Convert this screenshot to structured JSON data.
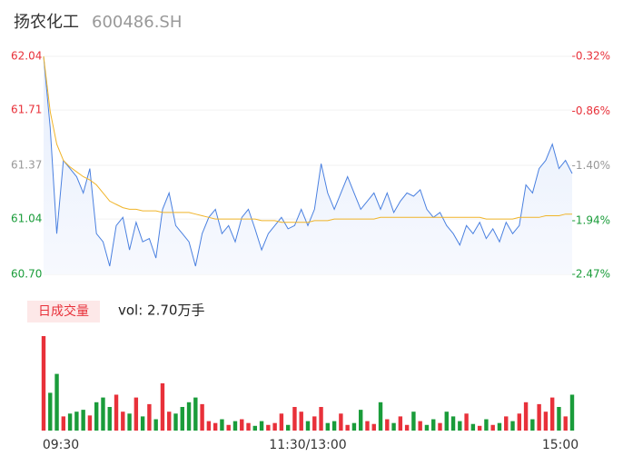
{
  "chart_data": [
    {
      "type": "line",
      "title": "扬农化工",
      "subtitle": "600486.SH",
      "series": [
        {
          "name": "price",
          "color": "#4a80e0",
          "values": [
            62.04,
            61.6,
            60.95,
            61.4,
            61.35,
            61.3,
            61.2,
            61.35,
            60.95,
            60.9,
            60.75,
            61.0,
            61.05,
            60.85,
            61.02,
            60.9,
            60.92,
            60.8,
            61.1,
            61.2,
            61.0,
            60.95,
            60.9,
            60.75,
            60.95,
            61.05,
            61.1,
            60.95,
            61.0,
            60.9,
            61.05,
            61.1,
            60.98,
            60.85,
            60.95,
            61.0,
            61.05,
            60.98,
            61.0,
            61.1,
            61.0,
            61.1,
            61.38,
            61.2,
            61.1,
            61.2,
            61.3,
            61.2,
            61.1,
            61.15,
            61.2,
            61.1,
            61.2,
            61.08,
            61.15,
            61.2,
            61.18,
            61.22,
            61.1,
            61.05,
            61.08,
            61.0,
            60.95,
            60.88,
            61.0,
            60.95,
            61.02,
            60.92,
            60.98,
            60.9,
            61.02,
            60.95,
            61.0,
            61.25,
            61.2,
            61.35,
            61.4,
            61.5,
            61.35,
            61.4,
            61.32
          ]
        },
        {
          "name": "average",
          "color": "#f0b429",
          "values": [
            62.04,
            61.7,
            61.5,
            61.4,
            61.36,
            61.33,
            61.3,
            61.28,
            61.25,
            61.2,
            61.15,
            61.13,
            61.11,
            61.1,
            61.1,
            61.09,
            61.09,
            61.09,
            61.08,
            61.08,
            61.08,
            61.08,
            61.08,
            61.07,
            61.06,
            61.05,
            61.04,
            61.04,
            61.04,
            61.04,
            61.04,
            61.04,
            61.04,
            61.03,
            61.03,
            61.03,
            61.02,
            61.02,
            61.02,
            61.02,
            61.02,
            61.03,
            61.03,
            61.03,
            61.04,
            61.04,
            61.04,
            61.04,
            61.04,
            61.04,
            61.04,
            61.05,
            61.05,
            61.05,
            61.05,
            61.05,
            61.05,
            61.05,
            61.05,
            61.05,
            61.05,
            61.05,
            61.05,
            61.05,
            61.05,
            61.05,
            61.05,
            61.04,
            61.04,
            61.04,
            61.04,
            61.04,
            61.05,
            61.05,
            61.05,
            61.05,
            61.06,
            61.06,
            61.06,
            61.07,
            61.07
          ]
        }
      ],
      "ylim": [
        60.7,
        62.04
      ],
      "yticks": [
        62.04,
        61.71,
        61.37,
        61.04,
        {
          "value": 60.7,
          "label": "60.70"
        }
      ],
      "ytick_colors": [
        "#e8313a",
        "#e8313a",
        "#999999",
        "#1a9c3a",
        "#1a9c3a"
      ],
      "y2lim": [
        -2.47,
        -0.32
      ],
      "y2ticks": [
        {
          "value": -0.32,
          "label": "-0.32%"
        },
        {
          "value": -0.86,
          "label": "-0.86%"
        },
        {
          "value": -1.4,
          "label": "-1.40%"
        },
        {
          "value": -1.94,
          "label": "-1.94%"
        },
        {
          "value": -2.47,
          "label": "-2.47%"
        }
      ]
    },
    {
      "type": "bar",
      "title": "日成交量",
      "annotation": "vol: 2.70万手",
      "values": [
        100,
        40,
        60,
        15,
        18,
        20,
        22,
        16,
        30,
        35,
        25,
        38,
        20,
        18,
        35,
        15,
        28,
        12,
        50,
        20,
        18,
        25,
        30,
        35,
        28,
        10,
        8,
        12,
        6,
        10,
        12,
        8,
        5,
        10,
        6,
        8,
        18,
        6,
        25,
        20,
        10,
        15,
        25,
        8,
        10,
        18,
        6,
        8,
        22,
        10,
        7,
        30,
        12,
        8,
        15,
        6,
        20,
        10,
        6,
        12,
        8,
        20,
        15,
        10,
        18,
        7,
        5,
        12,
        6,
        8,
        15,
        10,
        18,
        30,
        12,
        28,
        20,
        35,
        25,
        15,
        38
      ],
      "up_color": "#e8313a",
      "down_color": "#1a9c3a",
      "ylim": [
        0,
        100
      ],
      "x_labels": [
        "09:30",
        "11:30/13:00",
        "15:00"
      ]
    }
  ]
}
